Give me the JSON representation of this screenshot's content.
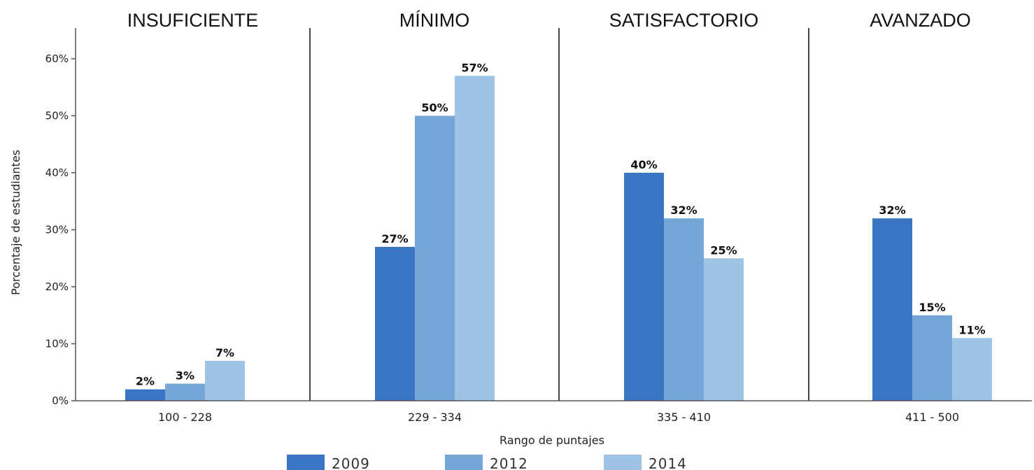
{
  "chart_data": {
    "type": "bar",
    "band_titles": [
      "INSUFICIENTE",
      "MÍNIMO",
      "SATISFACTORIO",
      "AVANZADO"
    ],
    "categories": [
      "100 - 228",
      "229 - 334",
      "335 - 410",
      "411 - 500"
    ],
    "xlabel": "Rango de puntajes",
    "ylabel": "Porcentaje de estudiantes",
    "ylim": [
      0,
      65
    ],
    "yticks": [
      0,
      10,
      20,
      30,
      40,
      50,
      60
    ],
    "ytick_labels": [
      "0%",
      "10%",
      "20%",
      "30%",
      "40%",
      "50%",
      "60%"
    ],
    "series": [
      {
        "name": "2009",
        "color": "#3a75c4",
        "values": [
          2,
          27,
          40,
          32
        ],
        "labels": [
          "2%",
          "27%",
          "40%",
          "32%"
        ]
      },
      {
        "name": "2012",
        "color": "#74a7d8",
        "values": [
          3,
          50,
          32,
          15
        ],
        "labels": [
          "3%",
          "50%",
          "32%",
          "15%"
        ]
      },
      {
        "name": "2014",
        "color": "#9dc4e4",
        "values": [
          7,
          57,
          25,
          11
        ],
        "labels": [
          "7%",
          "57%",
          "25%",
          "11%"
        ]
      }
    ],
    "legend_position": "bottom",
    "grid": false
  }
}
